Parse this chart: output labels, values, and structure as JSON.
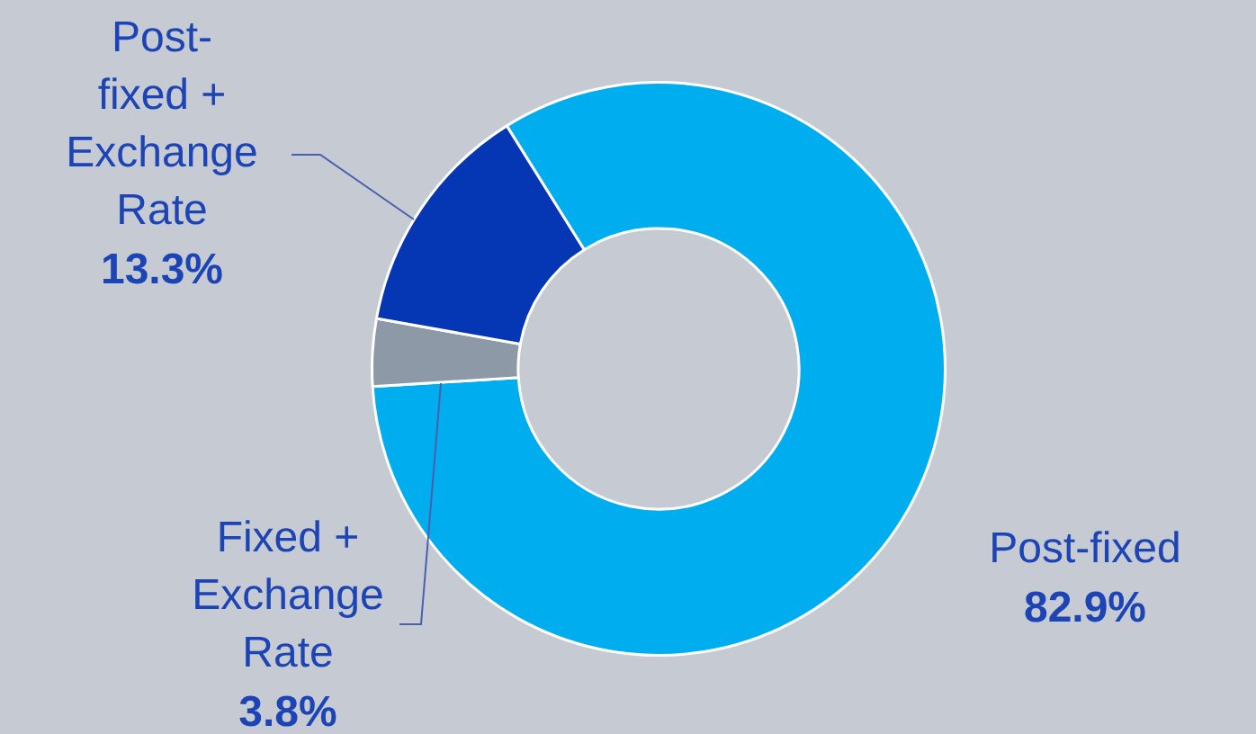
{
  "chart_data": {
    "type": "donut",
    "categories": [
      "Post-fixed",
      "Fixed + Exchange Rate",
      "Post-fixed + Exchange Rate"
    ],
    "values": [
      82.9,
      3.8,
      13.3
    ],
    "colors": [
      "#00aeef",
      "#8e99a8",
      "#0536b3"
    ],
    "value_labels": [
      "82.9%",
      "3.8%",
      "13.3%"
    ]
  }
}
